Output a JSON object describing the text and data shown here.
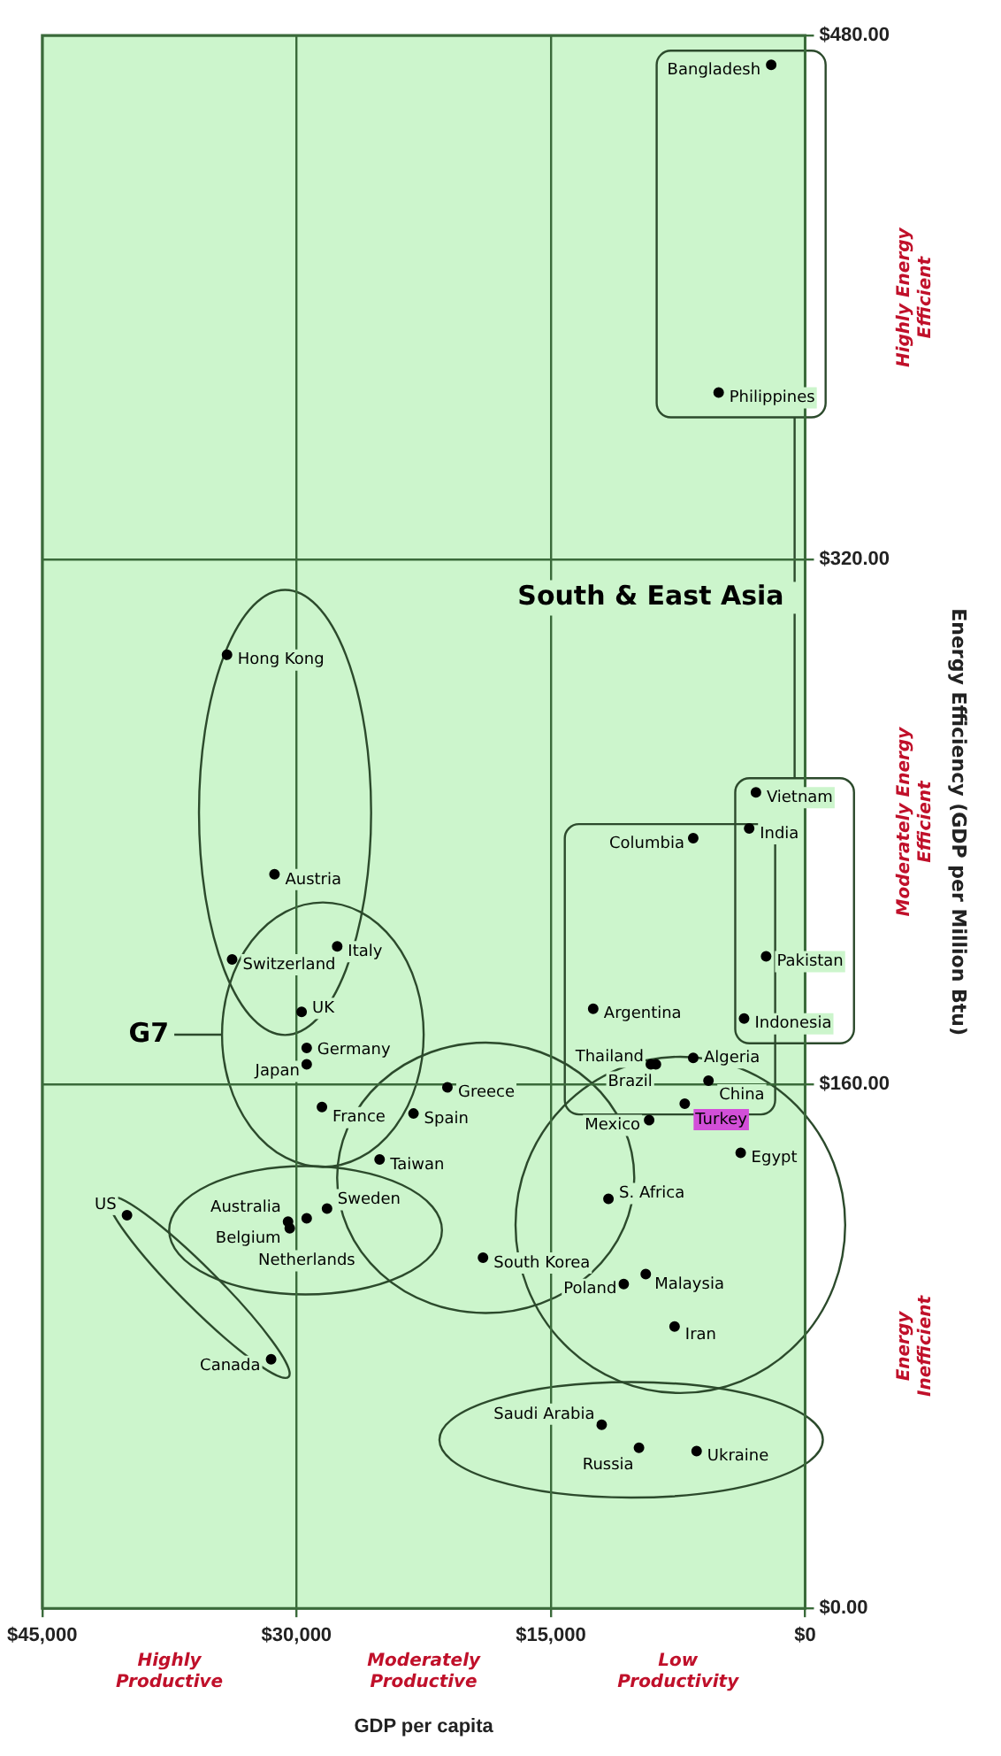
{
  "chart_data": {
    "type": "scatter",
    "xlabel": "GDP per capita",
    "ylabel": "Energy Efficiency (GDP per Million Btu)",
    "xlim": [
      45000,
      0
    ],
    "xticks": [
      {
        "value": 45000,
        "label": "$45,000"
      },
      {
        "value": 30000,
        "label": "$30,000"
      },
      {
        "value": 15000,
        "label": "$15,000"
      },
      {
        "value": 0,
        "label": "$0"
      }
    ],
    "ylim": [
      0,
      480
    ],
    "yticks": [
      {
        "value": 0,
        "label": "$0.00"
      },
      {
        "value": 160,
        "label": "$160.00"
      },
      {
        "value": 320,
        "label": "$320.00"
      },
      {
        "value": 480,
        "label": "$480.00"
      }
    ],
    "grid": true,
    "marker": "circle",
    "series": [
      {
        "color": "#000000",
        "x": [
          40000,
          31500,
          30500,
          30400,
          29400,
          28200,
          33800,
          34100,
          31300,
          29400,
          29700,
          29400,
          28500,
          27600,
          25100,
          23100,
          21100,
          19000,
          12000,
          9800,
          6400,
          10700,
          11600,
          9200,
          7100,
          9400,
          7700,
          3800,
          12500,
          9100,
          8800,
          6600,
          5700,
          6600,
          3600,
          2300,
          3300,
          2900,
          5100,
          2000
        ],
        "values": [
          120,
          76,
          118,
          116,
          119,
          122,
          198,
          291,
          224,
          166,
          182,
          171,
          153,
          202,
          137,
          151,
          159,
          107,
          56,
          49,
          48,
          99,
          125,
          149,
          154,
          102,
          86,
          139,
          183,
          166,
          166,
          168,
          161,
          235,
          180,
          199,
          238,
          249,
          371,
          471
        ]
      }
    ],
    "annotations": [
      {
        "text": "US",
        "x": 40000,
        "y": 120
      },
      {
        "text": "Canada",
        "x": 31500,
        "y": 76
      },
      {
        "text": "Australia",
        "x": 30500,
        "y": 118
      },
      {
        "text": "Belgium",
        "x": 30400,
        "y": 116
      },
      {
        "text": "Netherlands",
        "x": 29400,
        "y": 119
      },
      {
        "text": "Sweden",
        "x": 28200,
        "y": 122
      },
      {
        "text": "Switzerland",
        "x": 33800,
        "y": 198
      },
      {
        "text": "Hong Kong",
        "x": 34100,
        "y": 291
      },
      {
        "text": "Austria",
        "x": 31300,
        "y": 224
      },
      {
        "text": "Japan",
        "x": 29400,
        "y": 166
      },
      {
        "text": "UK",
        "x": 29700,
        "y": 182
      },
      {
        "text": "Germany",
        "x": 29400,
        "y": 171
      },
      {
        "text": "France",
        "x": 28500,
        "y": 153
      },
      {
        "text": "Italy",
        "x": 27600,
        "y": 202
      },
      {
        "text": "Taiwan",
        "x": 25100,
        "y": 137
      },
      {
        "text": "Spain",
        "x": 23100,
        "y": 151
      },
      {
        "text": "Greece",
        "x": 21100,
        "y": 159
      },
      {
        "text": "South Korea",
        "x": 19000,
        "y": 107
      },
      {
        "text": "Saudi Arabia",
        "x": 12000,
        "y": 56
      },
      {
        "text": "Russia",
        "x": 9800,
        "y": 49
      },
      {
        "text": "Ukraine",
        "x": 6400,
        "y": 48
      },
      {
        "text": "Poland",
        "x": 10700,
        "y": 99
      },
      {
        "text": "S. Africa",
        "x": 11600,
        "y": 125
      },
      {
        "text": "Mexico",
        "x": 9200,
        "y": 149
      },
      {
        "text": "Turkey",
        "x": 7100,
        "y": 154
      },
      {
        "text": "Malaysia",
        "x": 9400,
        "y": 102
      },
      {
        "text": "Iran",
        "x": 7700,
        "y": 86
      },
      {
        "text": "Egypt",
        "x": 3800,
        "y": 139
      },
      {
        "text": "Argentina",
        "x": 12500,
        "y": 183
      },
      {
        "text": "Thailand",
        "x": 9100,
        "y": 166
      },
      {
        "text": "Brazil",
        "x": 8800,
        "y": 166
      },
      {
        "text": "Algeria",
        "x": 6600,
        "y": 168
      },
      {
        "text": "China",
        "x": 5700,
        "y": 161
      },
      {
        "text": "Columbia",
        "x": 6600,
        "y": 235
      },
      {
        "text": "Indonesia",
        "x": 3600,
        "y": 180
      },
      {
        "text": "Pakistan",
        "x": 2300,
        "y": 199
      },
      {
        "text": "India",
        "x": 3300,
        "y": 238
      },
      {
        "text": "Vietnam",
        "x": 2900,
        "y": 249
      },
      {
        "text": "Philippines",
        "x": 5100,
        "y": 371
      },
      {
        "text": "Bangladesh",
        "x": 2000,
        "y": 471
      },
      "G7",
      "South & East Asia",
      "Highly Productive",
      "Moderately Productive",
      "Low Productivity",
      "Energy Inefficient",
      "Moderately Energy Efficient",
      "Highly Energy Efficient"
    ]
  }
}
